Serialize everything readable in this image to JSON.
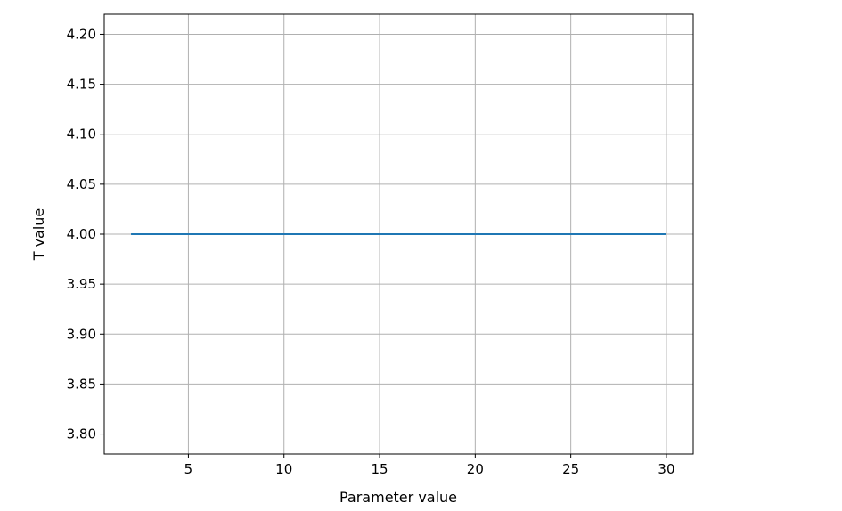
{
  "chart_data": {
    "type": "line",
    "title": "",
    "xlabel": "Parameter value",
    "ylabel": "T value",
    "xlim": [
      0.6,
      31.4
    ],
    "ylim": [
      3.78,
      4.22
    ],
    "x_ticks": [
      5,
      10,
      15,
      20,
      25,
      30
    ],
    "y_ticks": [
      3.8,
      3.85,
      3.9,
      3.95,
      4.0,
      4.05,
      4.1,
      4.15,
      4.2
    ],
    "x_tick_labels": [
      "5",
      "10",
      "15",
      "20",
      "25",
      "30"
    ],
    "y_tick_labels": [
      "3.80",
      "3.85",
      "3.90",
      "3.95",
      "4.00",
      "4.05",
      "4.10",
      "4.15",
      "4.20"
    ],
    "grid": true,
    "series": [
      {
        "color": "#1f77b4",
        "x": [
          2,
          3,
          4,
          5,
          6,
          7,
          8,
          9,
          10,
          11,
          12,
          13,
          14,
          15,
          16,
          17,
          18,
          19,
          20,
          21,
          22,
          23,
          24,
          25,
          26,
          27,
          28,
          29,
          30
        ],
        "y": [
          4,
          4,
          4,
          4,
          4,
          4,
          4,
          4,
          4,
          4,
          4,
          4,
          4,
          4,
          4,
          4,
          4,
          4,
          4,
          4,
          4,
          4,
          4,
          4,
          4,
          4,
          4,
          4,
          4
        ]
      }
    ],
    "colors": {
      "grid": "#b0b0b0",
      "axes": "#000000"
    }
  }
}
